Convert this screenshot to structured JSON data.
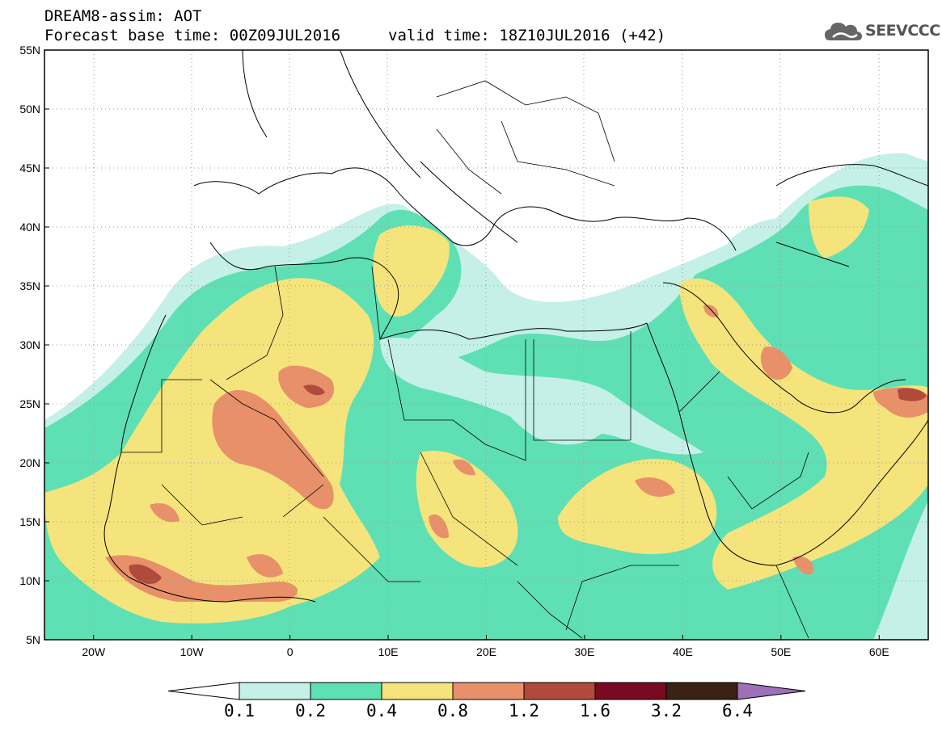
{
  "header": {
    "line1": "DREAM8-assim: AOT",
    "line2": "Forecast base time: 00Z09JUL2016",
    "line3": "valid time: 18Z10JUL2016 (+42)"
  },
  "logo": {
    "text": "SEEVCCC",
    "icon": "cloud-icon"
  },
  "map": {
    "lon_range": [
      -25,
      65
    ],
    "lat_range": [
      5,
      55
    ],
    "grid": "dotted",
    "y_ticks": [
      "5N",
      "10N",
      "15N",
      "20N",
      "25N",
      "30N",
      "35N",
      "40N",
      "45N",
      "50N",
      "55N"
    ],
    "x_ticks": [
      "20W",
      "10W",
      "0",
      "10E",
      "20E",
      "30E",
      "40E",
      "50E",
      "60E"
    ]
  },
  "colorbar": {
    "labels": [
      "0.1",
      "0.2",
      "0.4",
      "0.8",
      "1.2",
      "1.6",
      "3.2",
      "6.4"
    ],
    "colors": [
      "#ffffff",
      "#c4f0e8",
      "#5ee0b4",
      "#f5e47c",
      "#e8906a",
      "#b04a3a",
      "#7a0a22",
      "#3a2214",
      "#9d70b8"
    ]
  }
}
